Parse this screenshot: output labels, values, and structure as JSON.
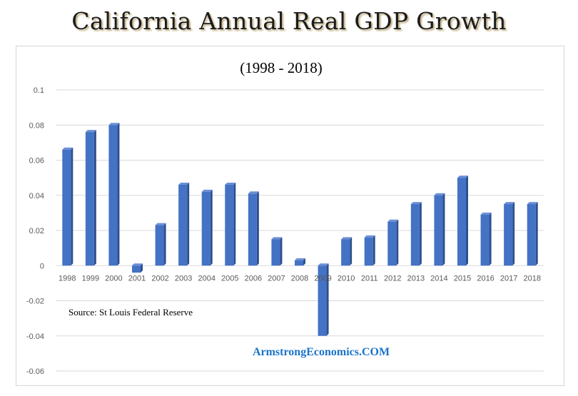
{
  "title": "California Annual Real GDP Growth",
  "chart_data": {
    "type": "bar",
    "subtitle": "(1998 - 2018)",
    "categories": [
      "1998",
      "1999",
      "2000",
      "2001",
      "2002",
      "2003",
      "2004",
      "2005",
      "2006",
      "2007",
      "2008",
      "2009",
      "2010",
      "2011",
      "2012",
      "2013",
      "2014",
      "2015",
      "2016",
      "2017",
      "2018"
    ],
    "series": [
      {
        "values": [
          0.066,
          0.076,
          0.08,
          -0.004,
          0.023,
          0.046,
          0.042,
          0.046,
          0.041,
          0.015,
          0.003,
          -0.04,
          0.015,
          0.016,
          0.025,
          0.035,
          0.04,
          0.05,
          0.029,
          0.035,
          0.035
        ]
      }
    ],
    "ylim": [
      -0.06,
      0.1
    ],
    "yticks": [
      0.1,
      0.08,
      0.06,
      0.04,
      0.02,
      0,
      -0.02,
      -0.04,
      -0.06
    ],
    "ytick_labels": [
      "0.1",
      "0.08",
      "0.06",
      "0.04",
      "0.02",
      "0",
      "-0.02",
      "-0.04",
      "-0.06"
    ],
    "grid": true,
    "bar_color": "#4472c4",
    "annotations": {
      "source": "Source: St Louis Federal Reserve",
      "watermark": "ArmstrongEconomics.COM"
    }
  }
}
